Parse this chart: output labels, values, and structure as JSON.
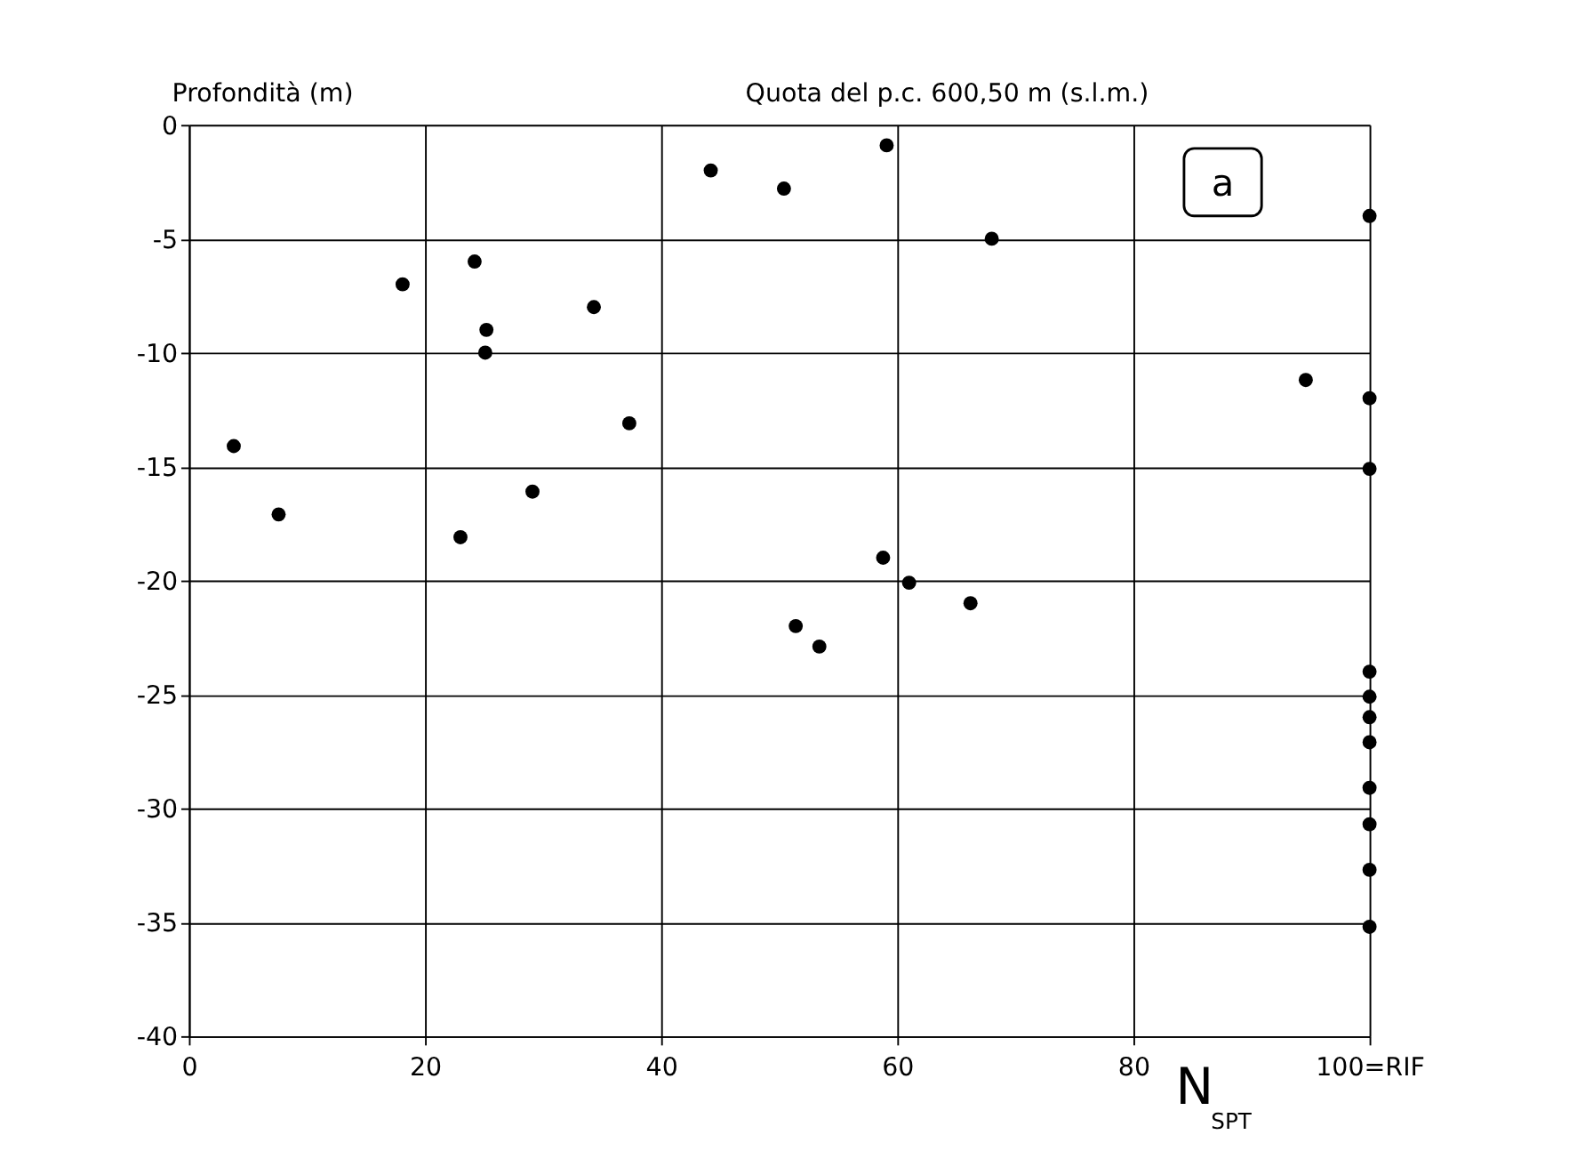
{
  "chart_data": {
    "type": "scatter",
    "xlabel": "N$_{SPT}$",
    "ylabel": "Profondità (m)",
    "annotations": [
      "Quota del p.c. 600,50 m (s.l.m.)",
      "a"
    ],
    "x": [
      3.8,
      7.6,
      18.1,
      24.2,
      25.2,
      25.1,
      34.3,
      37.3,
      29.1,
      23.0,
      44.2,
      50.4,
      59.1,
      68.0,
      100,
      94.6,
      100,
      100,
      58.8,
      61.0,
      66.2,
      51.4,
      53.4,
      100,
      100,
      100,
      100,
      100,
      100,
      100,
      100
    ],
    "series": [
      {
        "color": "#000000",
        "values": [
          -14.1,
          -17.1,
          -7.0,
          -6.0,
          -9.0,
          -10.0,
          -8.0,
          -13.1,
          -16.1,
          -18.1,
          -2.0,
          -2.8,
          -0.9,
          -5.0,
          -4.0,
          -11.2,
          -12.0,
          -15.1,
          -19.0,
          -20.1,
          -21.0,
          -22.0,
          -22.9,
          -24.0,
          -25.1,
          -26.0,
          -27.1,
          -29.1,
          -30.7,
          -32.7,
          -35.2
        ]
      }
    ],
    "xlim": [
      0,
      100
    ],
    "ylim": [
      -40,
      0
    ],
    "xticks": [
      0,
      20,
      40,
      60,
      80,
      {
        "value": 100,
        "label": "100=RIF"
      }
    ],
    "yticks": [
      -40,
      -35,
      -30,
      -25,
      -20,
      -15,
      -10,
      -5,
      0
    ],
    "grid": true,
    "marker": "circle"
  }
}
